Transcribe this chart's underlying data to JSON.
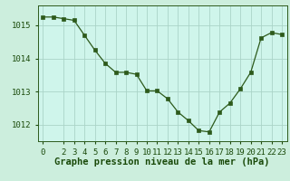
{
  "x": [
    0,
    1,
    2,
    3,
    4,
    5,
    6,
    7,
    8,
    9,
    10,
    11,
    12,
    13,
    14,
    15,
    16,
    17,
    18,
    19,
    20,
    21,
    22,
    23
  ],
  "y": [
    1015.25,
    1015.25,
    1015.2,
    1015.15,
    1014.7,
    1014.25,
    1013.85,
    1013.58,
    1013.58,
    1013.52,
    1013.02,
    1013.02,
    1012.78,
    1012.38,
    1012.12,
    1011.82,
    1011.78,
    1012.38,
    1012.65,
    1013.08,
    1013.58,
    1014.62,
    1014.78,
    1014.72
  ],
  "line_color": "#2d5a1b",
  "marker_color": "#2d5a1b",
  "bg_color": "#cceedd",
  "plot_bg_color": "#cff5eb",
  "grid_color": "#aad4c8",
  "axis_label_color": "#1a4a0a",
  "tick_color": "#1a4a0a",
  "xlabel": "Graphe pression niveau de la mer (hPa)",
  "ylim": [
    1011.5,
    1015.6
  ],
  "yticks": [
    1012,
    1013,
    1014,
    1015
  ],
  "xticks": [
    0,
    2,
    3,
    4,
    5,
    6,
    7,
    8,
    9,
    10,
    11,
    12,
    13,
    14,
    15,
    16,
    17,
    18,
    19,
    20,
    21,
    22,
    23
  ],
  "spine_color": "#2d5a1b",
  "xlabel_fontsize": 7.5,
  "tick_fontsize": 6.5
}
